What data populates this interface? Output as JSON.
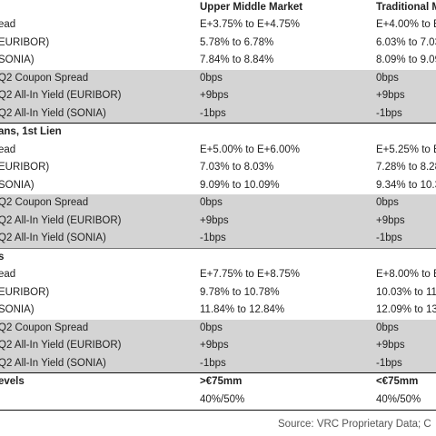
{
  "header": {
    "col1": "Upper Middle Market",
    "col2": "Traditional M"
  },
  "sections": [
    {
      "title": "",
      "rows": [
        {
          "label": "ead",
          "v1": "E+3.75% to E+4.75%",
          "v2": "E+4.00% to E",
          "shaded": false
        },
        {
          "label": "EURIBOR)",
          "v1": "5.78% to 6.78%",
          "v2": "6.03% to 7.03",
          "shaded": false
        },
        {
          "label": "SONIA)",
          "v1": "7.84% to 8.84%",
          "v2": "8.09% to 9.09",
          "shaded": false
        },
        {
          "label": "Q2 Coupon Spread",
          "v1": "0bps",
          "v2": "0bps",
          "shaded": true
        },
        {
          "label": "Q2 All-In Yield (EURIBOR)",
          "v1": "+9bps",
          "v2": "+9bps",
          "shaded": true
        },
        {
          "label": "Q2 All-In Yield (SONIA)",
          "v1": "-1bps",
          "v2": "-1bps",
          "shaded": true
        }
      ]
    },
    {
      "title": "ans, 1st Lien",
      "rows": [
        {
          "label": "ead",
          "v1": "E+5.00% to E+6.00%",
          "v2": "E+5.25% to E",
          "shaded": false
        },
        {
          "label": "EURIBOR)",
          "v1": "7.03% to 8.03%",
          "v2": "7.28% to 8.28",
          "shaded": false
        },
        {
          "label": "SONIA)",
          "v1": "9.09% to 10.09%",
          "v2": "9.34% to 10.3",
          "shaded": false
        },
        {
          "label": "Q2 Coupon Spread",
          "v1": "0bps",
          "v2": "0bps",
          "shaded": true
        },
        {
          "label": "Q2 All-In Yield (EURIBOR)",
          "v1": "+9bps",
          "v2": "+9bps",
          "shaded": true
        },
        {
          "label": "Q2 All-In Yield (SONIA)",
          "v1": "-1bps",
          "v2": "-1bps",
          "shaded": true
        }
      ]
    },
    {
      "title": "s",
      "rows": [
        {
          "label": "ead",
          "v1": "E+7.75% to E+8.75%",
          "v2": "E+8.00% to E",
          "shaded": false
        },
        {
          "label": "EURIBOR)",
          "v1": "9.78% to 10.78%",
          "v2": "10.03% to 11",
          "shaded": false
        },
        {
          "label": "SONIA)",
          "v1": "11.84% to 12.84%",
          "v2": "12.09% to 13",
          "shaded": false
        },
        {
          "label": "Q2 Coupon Spread",
          "v1": "0bps",
          "v2": "0bps",
          "shaded": true
        },
        {
          "label": "Q2 All-In Yield (EURIBOR)",
          "v1": "+9bps",
          "v2": "+9bps",
          "shaded": true
        },
        {
          "label": "Q2 All-In Yield (SONIA)",
          "v1": "-1bps",
          "v2": "-1bps",
          "shaded": true
        }
      ]
    }
  ],
  "footer": {
    "label": "evels",
    "row1": {
      "v1": ">€75mm",
      "v2": "<€75mm"
    },
    "row2": {
      "v1": "40%/50%",
      "v2": "40%/50%"
    }
  },
  "source": "Source: VRC Proprietary Data; C"
}
